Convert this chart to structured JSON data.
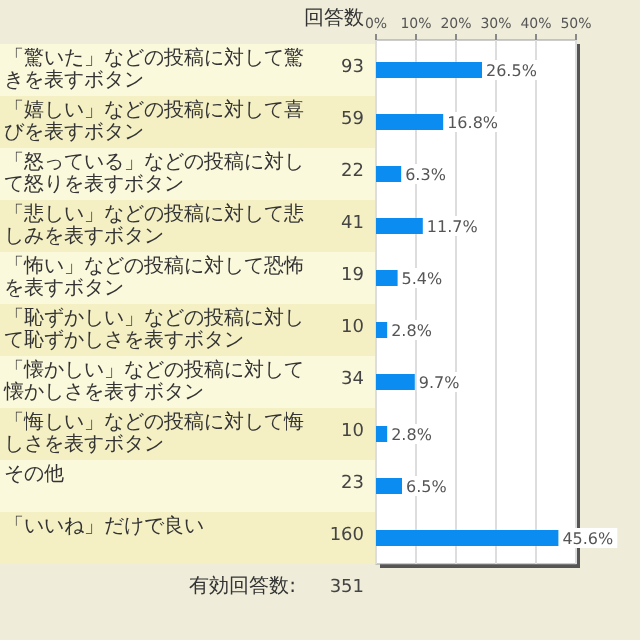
{
  "chart_data": {
    "type": "bar",
    "orientation": "horizontal",
    "categories": [
      "「驚いた」などの投稿に対して驚きを表すボタン",
      "「嬉しい」などの投稿に対して喜びを表すボタン",
      "「怒っている」などの投稿に対して怒りを表すボタン",
      "「悲しい」などの投稿に対して悲しみを表すボタン",
      "「怖い」などの投稿に対して恐怖を表すボタン",
      "「恥ずかしい」などの投稿に対して恥ずかしさを表すボタン",
      "「懐かしい」などの投稿に対して懐かしさを表すボタン",
      "「悔しい」などの投稿に対して悔しさを表すボタン",
      "その他",
      "「いいね」だけで良い"
    ],
    "series": [
      {
        "color": "#0a8cf0",
        "values": [
          26.5,
          16.8,
          6.3,
          11.7,
          5.4,
          2.8,
          9.7,
          2.8,
          6.5,
          45.6
        ],
        "value_labels": [
          "26.5%",
          "16.8%",
          "6.3%",
          "11.7%",
          "5.4%",
          "2.8%",
          "9.7%",
          "2.8%",
          "6.5%",
          "45.6%"
        ]
      }
    ],
    "xlim": [
      0,
      50
    ],
    "xticks": [
      {
        "value": 0,
        "label": "0%"
      },
      {
        "value": 10,
        "label": "10%"
      },
      {
        "value": 20,
        "label": "20%"
      },
      {
        "value": 30,
        "label": "30%"
      },
      {
        "value": 40,
        "label": "40%"
      },
      {
        "value": 50,
        "label": "50%"
      }
    ],
    "grid": "x",
    "annotations": [
      "回答数",
      "93",
      "59",
      "22",
      "41",
      "19",
      "10",
      "34",
      "10",
      "23",
      "160",
      "有効回答数:",
      "351"
    ]
  }
}
